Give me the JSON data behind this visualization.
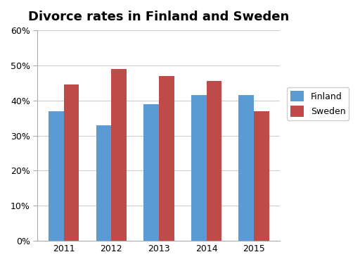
{
  "title": "Divorce rates in Finland and Sweden",
  "years": [
    "2011",
    "2012",
    "2013",
    "2014",
    "2015"
  ],
  "finland": [
    0.37,
    0.33,
    0.39,
    0.415,
    0.415
  ],
  "sweden": [
    0.445,
    0.49,
    0.47,
    0.455,
    0.37
  ],
  "finland_color": "#5B9BD5",
  "sweden_color": "#BE4B48",
  "background_color": "#FFFFFF",
  "ylim": [
    0,
    0.6
  ],
  "yticks": [
    0.0,
    0.1,
    0.2,
    0.3,
    0.4,
    0.5,
    0.6
  ],
  "legend_labels": [
    "Finland",
    "Sweden"
  ],
  "bar_width": 0.32,
  "title_fontsize": 13,
  "tick_fontsize": 9,
  "legend_fontsize": 9
}
